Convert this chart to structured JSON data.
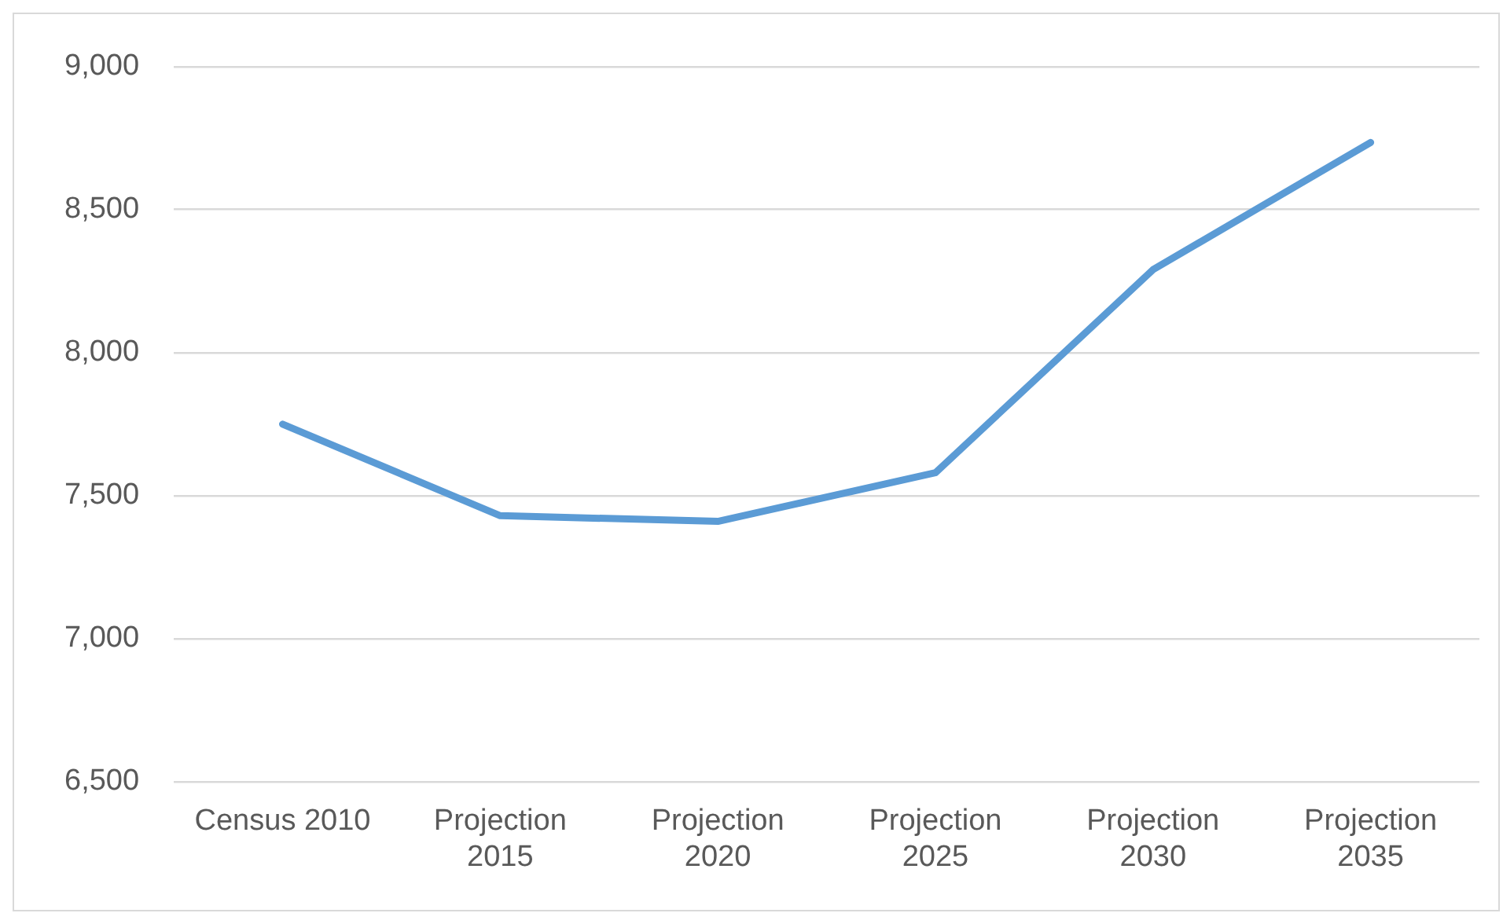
{
  "chart_data": {
    "type": "line",
    "categories": [
      "Census 2010",
      "Projection 2015",
      "Projection 2020",
      "Projection 2025",
      "Projection 2030",
      "Projection 2035"
    ],
    "series": [
      {
        "color": "#5b9bd5",
        "values": [
          7750,
          7430,
          7410,
          7580,
          8290,
          8735
        ]
      }
    ],
    "ylim": [
      6500,
      9000
    ],
    "yticks": [
      {
        "value": 6500,
        "label": "6,500"
      },
      {
        "value": 7000,
        "label": "7,000"
      },
      {
        "value": 7500,
        "label": "7,500"
      },
      {
        "value": 8000,
        "label": "8,000"
      },
      {
        "value": 8500,
        "label": "8,500"
      },
      {
        "value": 9000,
        "label": "9,000"
      }
    ],
    "grid": "y",
    "marker": "none",
    "line_style": "solid",
    "legend": false
  }
}
